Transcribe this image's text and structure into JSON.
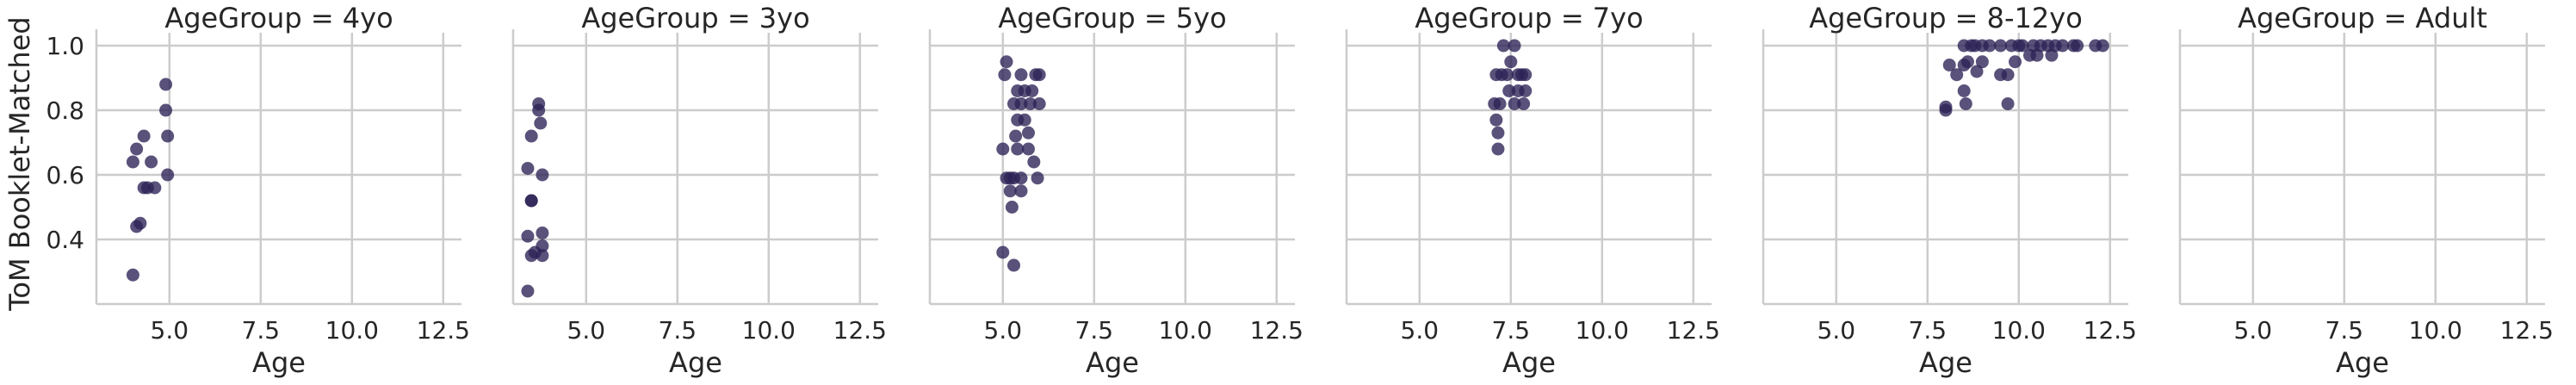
{
  "chart_data": {
    "type": "scatter",
    "facet_variable": "AgeGroup",
    "xlabel": "Age",
    "ylabel": "ToM Booklet-Matched",
    "xlim": [
      3.0,
      13.0
    ],
    "ylim": [
      0.2,
      1.04
    ],
    "xticks": [
      5.0,
      7.5,
      10.0,
      12.5
    ],
    "xtick_labels": [
      "5.0",
      "7.5",
      "10.0",
      "12.5"
    ],
    "yticks": [
      0.4,
      0.6,
      0.8,
      1.0
    ],
    "ytick_labels": [
      "0.4",
      "0.6",
      "0.8",
      "1.0"
    ],
    "grid": true,
    "marker_color": "#2b2155",
    "panels": [
      {
        "title": "AgeGroup = 4yo",
        "points": [
          [
            4.0,
            0.29
          ],
          [
            4.0,
            0.64
          ],
          [
            4.1,
            0.44
          ],
          [
            4.1,
            0.68
          ],
          [
            4.2,
            0.45
          ],
          [
            4.3,
            0.56
          ],
          [
            4.3,
            0.72
          ],
          [
            4.4,
            0.56
          ],
          [
            4.5,
            0.64
          ],
          [
            4.6,
            0.56
          ],
          [
            4.9,
            0.88
          ],
          [
            4.9,
            0.8
          ],
          [
            4.95,
            0.72
          ],
          [
            4.95,
            0.6
          ]
        ]
      },
      {
        "title": "AgeGroup = 3yo",
        "points": [
          [
            3.4,
            0.24
          ],
          [
            3.4,
            0.41
          ],
          [
            3.4,
            0.62
          ],
          [
            3.5,
            0.52
          ],
          [
            3.5,
            0.52
          ],
          [
            3.5,
            0.35
          ],
          [
            3.5,
            0.72
          ],
          [
            3.6,
            0.36
          ],
          [
            3.7,
            0.82
          ],
          [
            3.7,
            0.8
          ],
          [
            3.75,
            0.76
          ],
          [
            3.8,
            0.6
          ],
          [
            3.8,
            0.42
          ],
          [
            3.8,
            0.38
          ],
          [
            3.8,
            0.35
          ]
        ]
      },
      {
        "title": "AgeGroup = 5yo",
        "points": [
          [
            5.0,
            0.36
          ],
          [
            5.0,
            0.68
          ],
          [
            5.05,
            0.91
          ],
          [
            5.1,
            0.95
          ],
          [
            5.1,
            0.59
          ],
          [
            5.2,
            0.59
          ],
          [
            5.2,
            0.55
          ],
          [
            5.25,
            0.5
          ],
          [
            5.3,
            0.32
          ],
          [
            5.3,
            0.59
          ],
          [
            5.3,
            0.82
          ],
          [
            5.35,
            0.72
          ],
          [
            5.4,
            0.77
          ],
          [
            5.4,
            0.68
          ],
          [
            5.4,
            0.86
          ],
          [
            5.5,
            0.82
          ],
          [
            5.5,
            0.91
          ],
          [
            5.5,
            0.55
          ],
          [
            5.5,
            0.59
          ],
          [
            5.6,
            0.77
          ],
          [
            5.6,
            0.86
          ],
          [
            5.7,
            0.73
          ],
          [
            5.7,
            0.68
          ],
          [
            5.75,
            0.82
          ],
          [
            5.8,
            0.86
          ],
          [
            5.85,
            0.64
          ],
          [
            5.9,
            0.91
          ],
          [
            5.95,
            0.59
          ],
          [
            6.0,
            0.82
          ],
          [
            6.0,
            0.91
          ]
        ]
      },
      {
        "title": "AgeGroup = 7yo",
        "points": [
          [
            7.05,
            0.82
          ],
          [
            7.1,
            0.91
          ],
          [
            7.1,
            0.77
          ],
          [
            7.15,
            0.73
          ],
          [
            7.15,
            0.68
          ],
          [
            7.2,
            0.82
          ],
          [
            7.25,
            0.91
          ],
          [
            7.3,
            1.0
          ],
          [
            7.4,
            0.91
          ],
          [
            7.45,
            0.86
          ],
          [
            7.5,
            0.95
          ],
          [
            7.6,
            0.82
          ],
          [
            7.6,
            1.0
          ],
          [
            7.7,
            0.86
          ],
          [
            7.7,
            0.91
          ],
          [
            7.8,
            0.91
          ],
          [
            7.85,
            0.82
          ],
          [
            7.9,
            0.91
          ],
          [
            7.9,
            0.86
          ]
        ]
      },
      {
        "title": "AgeGroup = 8-12yo",
        "points": [
          [
            8.0,
            0.8
          ],
          [
            8.0,
            0.81
          ],
          [
            8.1,
            0.94
          ],
          [
            8.3,
            0.91
          ],
          [
            8.5,
            0.94
          ],
          [
            8.5,
            1.0
          ],
          [
            8.5,
            0.86
          ],
          [
            8.55,
            0.82
          ],
          [
            8.6,
            0.95
          ],
          [
            8.7,
            1.0
          ],
          [
            8.8,
            1.0
          ],
          [
            8.85,
            0.92
          ],
          [
            9.0,
            1.0
          ],
          [
            9.0,
            0.95
          ],
          [
            9.2,
            1.0
          ],
          [
            9.5,
            0.91
          ],
          [
            9.5,
            1.0
          ],
          [
            9.7,
            0.91
          ],
          [
            9.7,
            0.82
          ],
          [
            9.8,
            1.0
          ],
          [
            9.9,
            0.95
          ],
          [
            10.0,
            1.0
          ],
          [
            10.1,
            1.0
          ],
          [
            10.3,
            0.97
          ],
          [
            10.4,
            1.0
          ],
          [
            10.5,
            0.97
          ],
          [
            10.6,
            1.0
          ],
          [
            10.8,
            1.0
          ],
          [
            10.9,
            0.97
          ],
          [
            11.0,
            1.0
          ],
          [
            11.2,
            1.0
          ],
          [
            11.5,
            1.0
          ],
          [
            11.6,
            1.0
          ],
          [
            12.1,
            1.0
          ],
          [
            12.3,
            1.0
          ]
        ]
      },
      {
        "title": "AgeGroup = Adult",
        "points": []
      }
    ]
  }
}
